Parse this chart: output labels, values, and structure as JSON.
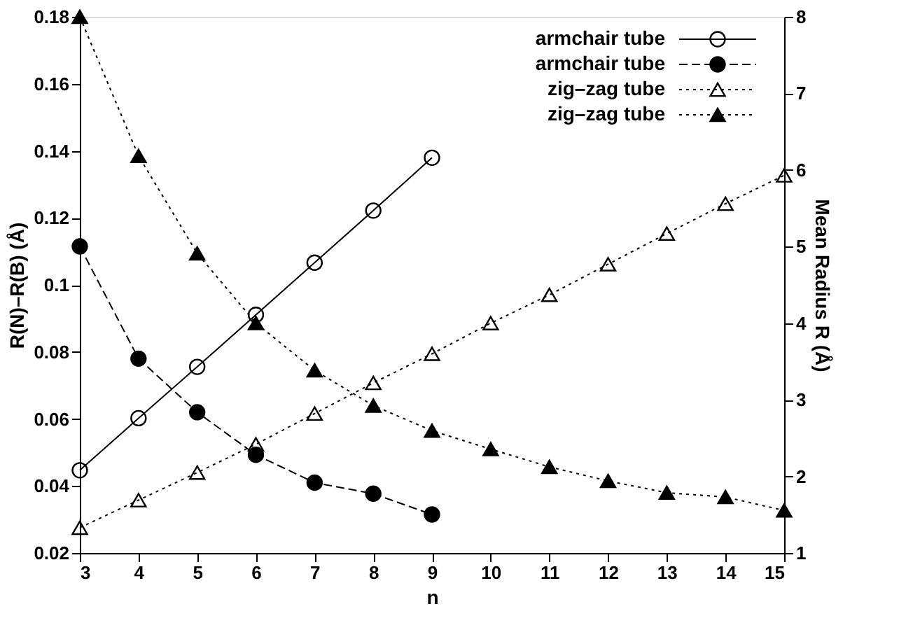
{
  "chart_data": {
    "type": "line",
    "xlabel": "n",
    "ylabel": "R(N)–R(B) (Å)",
    "y2label": "Mean Radius R (Å)",
    "xlim": [
      3,
      15
    ],
    "xticks": [
      3,
      4,
      5,
      6,
      7,
      8,
      9,
      10,
      11,
      12,
      13,
      14,
      15
    ],
    "ylim": [
      0.02,
      0.18
    ],
    "yticks": [
      0.02,
      0.04,
      0.06,
      0.08,
      {
        "value": 0.1,
        "label": "0.1"
      },
      0.12,
      0.14,
      0.16,
      0.18
    ],
    "y2lim": [
      1,
      8
    ],
    "y2ticks": [
      1,
      2,
      3,
      4,
      5,
      6,
      7,
      8
    ],
    "grid": false,
    "legend": "top right",
    "series": [
      {
        "name": "armchair tube",
        "color": "#000000",
        "axis": "y2",
        "marker": "circle-open",
        "line_style": "solid",
        "x": [
          3,
          4,
          5,
          6,
          7,
          8,
          9
        ],
        "values": [
          2.08,
          2.76,
          3.43,
          4.11,
          4.79,
          5.47,
          6.16
        ]
      },
      {
        "name": "armchair tube",
        "color": "#000000",
        "axis": "y",
        "marker": "circle",
        "line_style": "dashed",
        "x": [
          3,
          4,
          5,
          6,
          7,
          8,
          9
        ],
        "values": [
          0.1115,
          0.078,
          0.062,
          0.0493,
          0.041,
          0.0377,
          0.0315
        ]
      },
      {
        "name": "zig–zag tube",
        "color": "#000000",
        "axis": "y2",
        "marker": "triangle-open",
        "line_style": "dotted",
        "x": [
          3,
          4,
          5,
          6,
          7,
          8,
          9,
          10,
          11,
          12,
          13,
          14,
          15
        ],
        "values": [
          1.33,
          1.69,
          2.05,
          2.42,
          2.82,
          3.22,
          3.6,
          4.0,
          4.37,
          4.77,
          5.17,
          5.56,
          5.93
        ]
      },
      {
        "name": "zig–zag tube",
        "color": "#000000",
        "axis": "y",
        "marker": "triangle",
        "line_style": "dotted",
        "x": [
          3,
          4,
          5,
          6,
          7,
          8,
          9,
          10,
          11,
          12,
          13,
          14,
          15
        ],
        "values": [
          0.18,
          0.1385,
          0.1094,
          0.0886,
          0.0745,
          0.064,
          0.0565,
          0.051,
          0.0457,
          0.0415,
          0.038,
          0.0367,
          0.0327
        ]
      }
    ]
  }
}
